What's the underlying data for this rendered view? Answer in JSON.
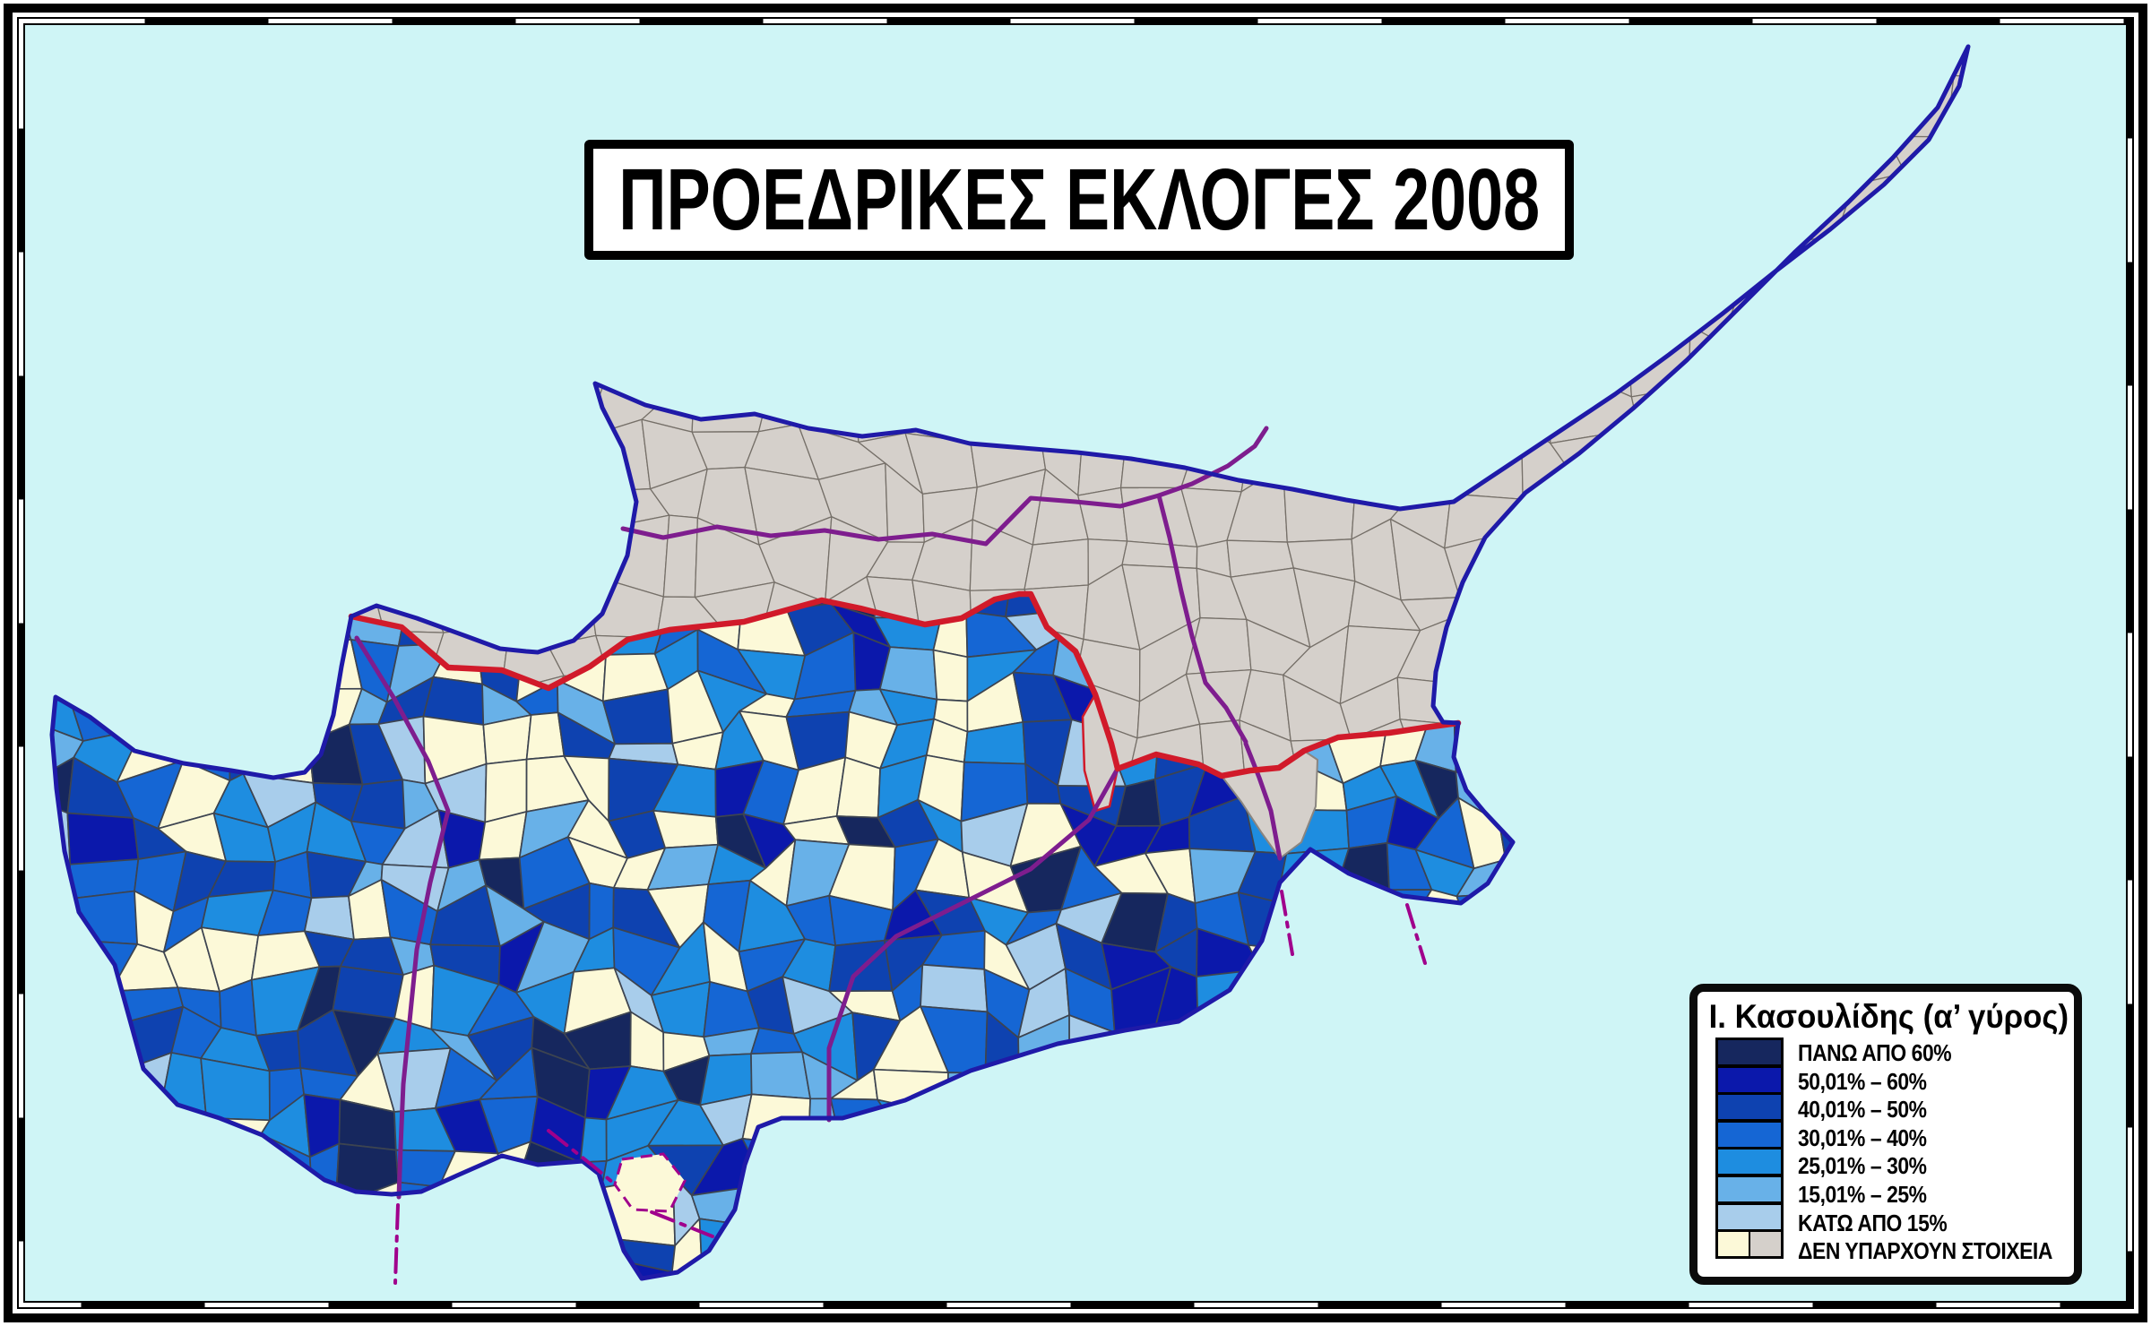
{
  "title": "ΠΡΟΕΔΡΙΚΕΣ ΕΚΛΟΓΕΣ 2008",
  "legend": {
    "title": "Ι. Κασουλίδης (α’ γύρος)",
    "items": [
      {
        "label": "ΠΑΝΩ ΑΠΟ 60%",
        "colors": [
          "#16275e"
        ]
      },
      {
        "label": "50,01% – 60%",
        "colors": [
          "#0b18ab"
        ]
      },
      {
        "label": "40,01% – 50%",
        "colors": [
          "#0e42b0"
        ]
      },
      {
        "label": "30,01% – 40%",
        "colors": [
          "#1566d4"
        ]
      },
      {
        "label": "25,01% – 30%",
        "colors": [
          "#1e8de0"
        ]
      },
      {
        "label": "15,01% – 25%",
        "colors": [
          "#68b1e8"
        ]
      },
      {
        "label": "ΚΑΤΩ ΑΠΟ 15%",
        "colors": [
          "#a8cdeb"
        ]
      },
      {
        "label": "ΔΕΝ ΥΠΑΡΧΟΥΝ ΣΤΟΙΧΕΙΑ",
        "colors": [
          "#fcf9d8",
          "#d5d0cb"
        ]
      }
    ]
  },
  "map": {
    "sea_color": "#cff5f6",
    "no_data_area_color": "#d5d0cb",
    "no_data_village_color": "#fcf9d8",
    "coastline_color": "#1f1aa8",
    "green_line_color": "#d11a2a",
    "district_line_color": "#7e1d8e",
    "sba_line_color": "#a0008c",
    "municipal_border_color": "#3d4450",
    "north_border_color": "#767069",
    "frame_color": "#000000"
  }
}
